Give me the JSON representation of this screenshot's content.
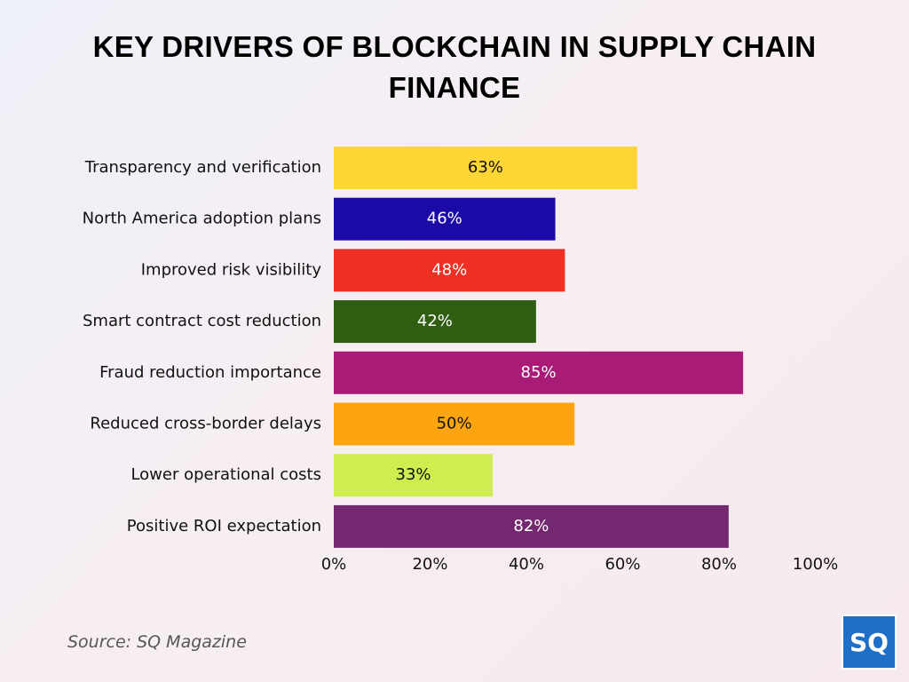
{
  "chart_data": {
    "type": "bar",
    "orientation": "horizontal",
    "title": "KEY DRIVERS OF BLOCKCHAIN IN SUPPLY CHAIN FINANCE",
    "categories": [
      "Transparency and verification",
      "North America adoption plans",
      "Improved risk visibility",
      "Smart contract cost reduction",
      "Fraud reduction importance",
      "Reduced cross-border delays",
      "Lower operational costs",
      "Positive ROI expectation"
    ],
    "values": [
      63,
      46,
      48,
      42,
      85,
      50,
      33,
      82
    ],
    "value_labels": [
      "63%",
      "46%",
      "48%",
      "42%",
      "85%",
      "50%",
      "33%",
      "82%"
    ],
    "colors": [
      "#fdd535",
      "#1b0aa6",
      "#ee3124",
      "#2f5e13",
      "#a81c78",
      "#fda50f",
      "#cdee4e",
      "#74286f"
    ],
    "xlim": [
      0,
      100
    ],
    "xticks": [
      {
        "value": 0,
        "label": "0%"
      },
      {
        "value": 20,
        "label": "20%"
      },
      {
        "value": 40,
        "label": "40%"
      },
      {
        "value": 60,
        "label": "60%"
      },
      {
        "value": 80,
        "label": "80%"
      },
      {
        "value": 100,
        "label": "100%"
      }
    ],
    "grid": false,
    "source": "Source: SQ Magazine",
    "logo": "SQ"
  }
}
